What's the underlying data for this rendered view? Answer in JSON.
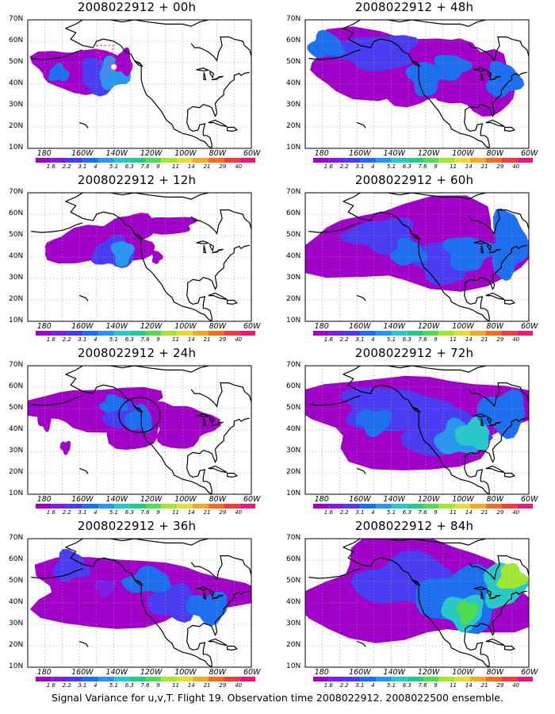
{
  "caption": "Signal Variance for u,v,T. Flight 19. Observation time 2008022912. 2008022500 ensemble.",
  "chart_data": {
    "type": "heatmap",
    "lat_labels": [
      "70N",
      "60N",
      "50N",
      "40N",
      "30N",
      "20N",
      "10N"
    ],
    "lon_labels": [
      "180",
      "160W",
      "140W",
      "120W",
      "100W",
      "80W",
      "60W"
    ],
    "lat_range": [
      10,
      70
    ],
    "lon_range": [
      -190,
      -60
    ],
    "colorbar": {
      "labels": [
        "1.6",
        "2.2",
        "3.1",
        "4",
        "5.1",
        "6.3",
        "7.6",
        "9",
        "11",
        "14",
        "21",
        "29",
        "40"
      ],
      "colors": [
        "#a000c8",
        "#7b1ee6",
        "#4a3cf0",
        "#1e6ef0",
        "#2896f0",
        "#28c8c8",
        "#1ecd8c",
        "#50dc50",
        "#a0e632",
        "#e6dc32",
        "#f0aa28",
        "#f06e1e",
        "#f03c3c",
        "#f0147d"
      ]
    },
    "panels": [
      {
        "title": "2008022912 + 00h",
        "level": 0
      },
      {
        "title": "2008022912 + 48h",
        "level": 3
      },
      {
        "title": "2008022912 + 12h",
        "level": 1
      },
      {
        "title": "2008022912 + 60h",
        "level": 4
      },
      {
        "title": "2008022912 + 24h",
        "level": 2
      },
      {
        "title": "2008022912 + 72h",
        "level": 5
      },
      {
        "title": "2008022912 + 36h",
        "level": 3
      },
      {
        "title": "2008022912 + 84h",
        "level": 6
      }
    ]
  }
}
